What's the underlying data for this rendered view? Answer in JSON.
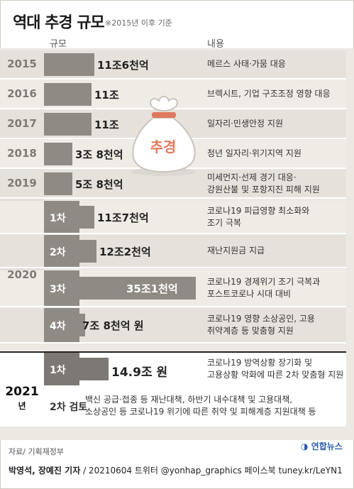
{
  "title": "역대 추경 규모",
  "subtitle": "※2015년 이후 기준",
  "headers": {
    "scale": "규모",
    "content": "내용"
  },
  "chart_data": {
    "type": "bar",
    "unit_note": "values in 억원",
    "rows": [
      {
        "year": "2015",
        "round": "",
        "value": 116000,
        "label": "11조6천억",
        "desc": [
          "메르스 사태·가뭄 대응"
        ]
      },
      {
        "year": "2016",
        "round": "",
        "value": 110000,
        "label": "11조",
        "desc": [
          "브렉시트, 기업 구조조정 영향 대응"
        ]
      },
      {
        "year": "2017",
        "round": "",
        "value": 110000,
        "label": "11조",
        "desc": [
          "일자리·민생안정 지원"
        ]
      },
      {
        "year": "2018",
        "round": "",
        "value": 38000,
        "label": "3조 8천억",
        "desc": [
          "청년 일자리·위기지역 지원"
        ]
      },
      {
        "year": "2019",
        "round": "",
        "value": 58000,
        "label": "5조 8천억",
        "desc": [
          "미세먼지·선제 경기 대응·",
          "강원산불 및 포항지진 피해 지원"
        ]
      },
      {
        "year": "2020",
        "round": "1차",
        "value": 117000,
        "label": "11조7천억",
        "desc": [
          "코로나19 피급영향 최소화와",
          "조기 극복"
        ]
      },
      {
        "year": "2020",
        "round": "2차",
        "value": 122000,
        "label": "12조2천억",
        "desc": [
          "재난지원금 지급"
        ]
      },
      {
        "year": "2020",
        "round": "3차",
        "value": 351000,
        "label": "35조1천억",
        "desc": [
          "코로나19 경제위기 조기 극복과",
          "포스트코로나 시대 대비"
        ]
      },
      {
        "year": "2020",
        "round": "4차",
        "value": 78000,
        "label": "7조 8천억 원",
        "desc": [
          "코로나19 영향 소상공인, 고용",
          "취약계층 등 맞춤형 지원"
        ]
      },
      {
        "year": "2021",
        "round": "1차",
        "value": 149000,
        "label": "14.9조 원",
        "desc": [
          "코로나19 방역상황 장기화 및",
          "고용상황 악화에 따른 2차 맞춤형 지원"
        ]
      },
      {
        "year": "2021",
        "round": "2차 검토",
        "value": null,
        "label": "",
        "desc": [
          "백신 공급·접종 등 재난대책, 하반기 내수대책 및 고용대책,",
          "소상공인 등 코로나19 위기에 따른 취약 및 피해계층 지원대책 등"
        ]
      }
    ],
    "year_labels": {
      "y2020": "2020",
      "y2021": "2021",
      "y2021_suffix": "년"
    },
    "sack_label": "추경"
  },
  "footer": {
    "source": "자료/ 기획재정부",
    "credit_names": "박영석, 장예진 기자",
    "credit_rest": "/ 20210604 트위터 @yonhap_graphics 페이스북 tuney.kr/LeYN1",
    "logo": "연합뉴스"
  }
}
